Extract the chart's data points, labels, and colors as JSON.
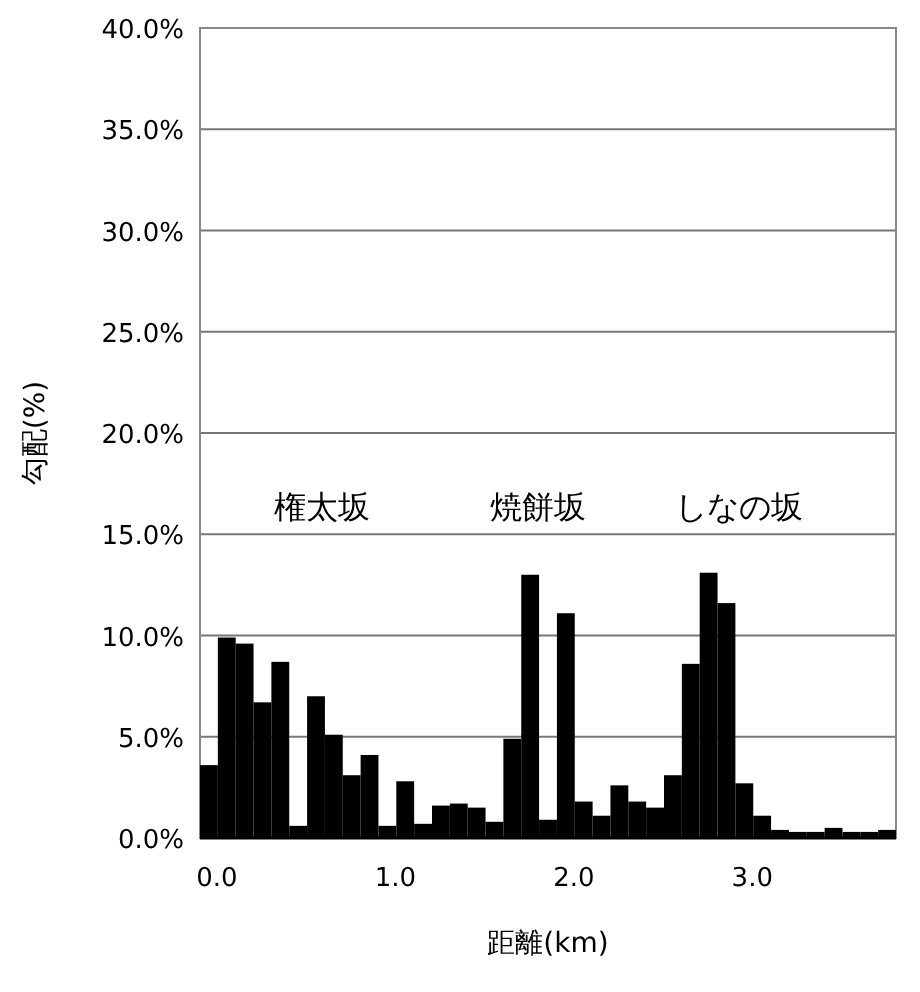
{
  "chart_data": {
    "type": "bar",
    "xlabel": "距離(km)",
    "ylabel": "勾配(%)",
    "categories": [
      "0.0",
      null,
      null,
      null,
      null,
      null,
      null,
      null,
      null,
      null,
      "1.0",
      null,
      null,
      null,
      null,
      null,
      null,
      null,
      null,
      null,
      "2.0",
      null,
      null,
      null,
      null,
      null,
      null,
      null,
      null,
      null,
      "3.0",
      null,
      null,
      null,
      null,
      null,
      null,
      null,
      null
    ],
    "values": [
      3.6,
      9.9,
      9.6,
      6.7,
      8.7,
      0.6,
      7.0,
      5.1,
      3.1,
      4.1,
      0.6,
      2.8,
      0.7,
      1.6,
      1.7,
      1.5,
      0.8,
      4.9,
      13.0,
      0.9,
      11.1,
      1.8,
      1.1,
      2.6,
      1.8,
      1.5,
      3.1,
      8.6,
      13.1,
      11.6,
      2.7,
      1.1,
      0.4,
      0.3,
      0.3,
      0.5,
      0.3,
      0.3,
      0.4
    ],
    "color": "#000000",
    "ylim": [
      0,
      40
    ],
    "yticks": [
      {
        "value": 0,
        "label": "0.0%"
      },
      {
        "value": 5,
        "label": "5.0%"
      },
      {
        "value": 10,
        "label": "10.0%"
      },
      {
        "value": 15,
        "label": "15.0%"
      },
      {
        "value": 20,
        "label": "20.0%"
      },
      {
        "value": 25,
        "label": "25.0%"
      },
      {
        "value": 30,
        "label": "30.0%"
      },
      {
        "value": 35,
        "label": "35.0%"
      },
      {
        "value": 40,
        "label": "40.0%"
      }
    ],
    "grid": "y",
    "annotations": [
      "権太坂",
      "焼餅坂",
      "しなの坂"
    ]
  }
}
